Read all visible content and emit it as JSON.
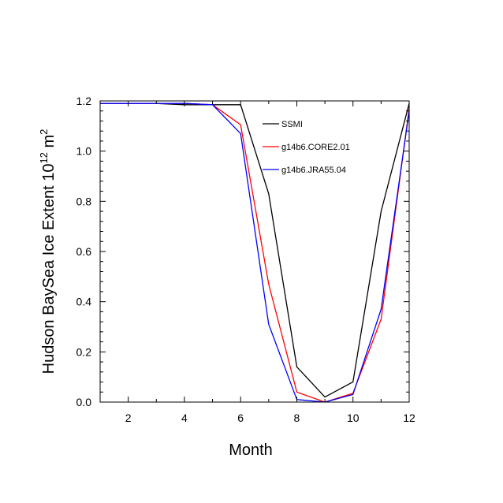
{
  "chart_data": {
    "type": "line",
    "xlabel": "Month",
    "ylabel_main": "Hudson BaySea Ice Extent 10",
    "ylabel_exp": "12",
    "ylabel_unit": " m",
    "ylabel_unit_exp": "2",
    "xlim": [
      1,
      12
    ],
    "ylim": [
      0,
      1.2
    ],
    "xticks": [
      2,
      4,
      6,
      8,
      10,
      12
    ],
    "yticks": [
      "0.0",
      "0.2",
      "0.4",
      "0.6",
      "0.8",
      "1.0",
      "1.2"
    ],
    "legend_position": "top-right",
    "x": [
      1,
      2,
      3,
      4,
      5,
      6,
      7,
      8,
      9,
      10,
      11,
      12
    ],
    "series": [
      {
        "name": "SSMI",
        "color": "#000000",
        "values": [
          1.19,
          1.19,
          1.19,
          1.185,
          1.185,
          1.185,
          0.83,
          0.14,
          0.02,
          0.08,
          0.76,
          1.19
        ]
      },
      {
        "name": "g14b6.CORE2.01",
        "color": "#ff0000",
        "values": [
          1.19,
          1.19,
          1.19,
          1.19,
          1.185,
          1.105,
          0.47,
          0.04,
          0.0,
          0.035,
          0.33,
          1.17
        ]
      },
      {
        "name": "g14b6.JRA55.04",
        "color": "#0000ff",
        "values": [
          1.19,
          1.19,
          1.19,
          1.19,
          1.185,
          1.07,
          0.31,
          0.01,
          0.0,
          0.03,
          0.37,
          1.16
        ]
      }
    ]
  }
}
